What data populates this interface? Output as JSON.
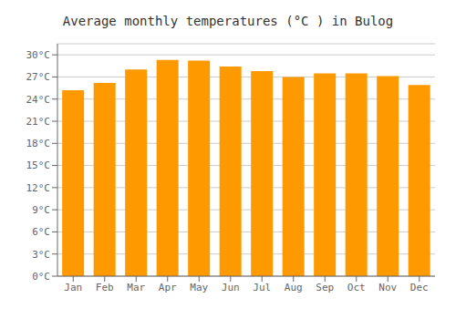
{
  "chart_data": {
    "type": "bar",
    "title": "Average monthly temperatures (°C ) in Bulog",
    "categories": [
      "Jan",
      "Feb",
      "Mar",
      "Apr",
      "May",
      "Jun",
      "Jul",
      "Aug",
      "Sep",
      "Oct",
      "Nov",
      "Dec"
    ],
    "values": [
      25.2,
      26.2,
      28.0,
      29.3,
      29.2,
      28.4,
      27.8,
      27.0,
      27.5,
      27.5,
      27.1,
      25.9
    ],
    "color": "#FF9900",
    "ylim": [
      0,
      31.5
    ],
    "yticks": [
      {
        "value": 0,
        "label": "0°C"
      },
      {
        "value": 3,
        "label": "3°C"
      },
      {
        "value": 6,
        "label": "6°C"
      },
      {
        "value": 9,
        "label": "9°C"
      },
      {
        "value": 12,
        "label": "12°C"
      },
      {
        "value": 15,
        "label": "15°C"
      },
      {
        "value": 18,
        "label": "18°C"
      },
      {
        "value": 21,
        "label": "21°C"
      },
      {
        "value": 24,
        "label": "24°C"
      },
      {
        "value": 27,
        "label": "27°C"
      },
      {
        "value": 30,
        "label": "30°C"
      }
    ],
    "grid": true
  }
}
